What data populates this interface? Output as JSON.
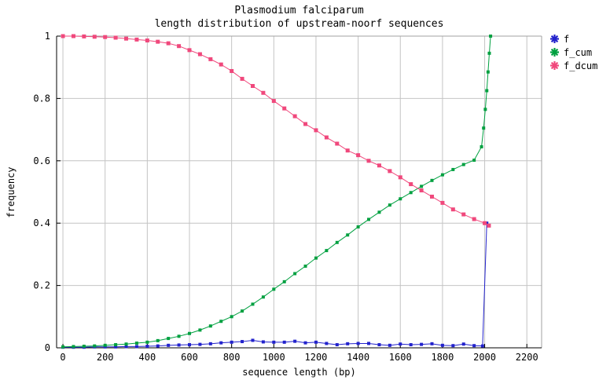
{
  "chart_data": {
    "type": "line",
    "title": "Plasmodium falciparum",
    "subtitle": "length distribution of upstream-noorf sequences",
    "xlabel": "sequence length (bp)",
    "ylabel": "frequency",
    "xlim": [
      -30,
      2270
    ],
    "ylim": [
      0,
      1
    ],
    "xticks": [
      0,
      200,
      400,
      600,
      800,
      1000,
      1200,
      1400,
      1600,
      1800,
      2000,
      2200
    ],
    "yticks": [
      0,
      0.2,
      0.4,
      0.6,
      0.8,
      1
    ],
    "grid": true,
    "legend_position": "outside-top-right",
    "colors": {
      "grid": "#c4c4c4",
      "border_gray": "#a0a0a0",
      "axis_black": "#000000"
    },
    "series": [
      {
        "name": "f",
        "color": "#2222cc",
        "x": [
          0,
          50,
          100,
          150,
          200,
          250,
          300,
          350,
          400,
          450,
          500,
          550,
          600,
          650,
          700,
          750,
          800,
          850,
          900,
          950,
          1000,
          1050,
          1100,
          1150,
          1200,
          1250,
          1300,
          1350,
          1400,
          1450,
          1500,
          1550,
          1600,
          1650,
          1700,
          1750,
          1800,
          1850,
          1900,
          1950,
          1990,
          2010
        ],
        "y": [
          0.002,
          0.002,
          0.002,
          0.003,
          0.003,
          0.003,
          0.004,
          0.004,
          0.005,
          0.006,
          0.008,
          0.009,
          0.01,
          0.011,
          0.013,
          0.016,
          0.018,
          0.02,
          0.024,
          0.019,
          0.018,
          0.018,
          0.021,
          0.016,
          0.018,
          0.014,
          0.01,
          0.013,
          0.014,
          0.014,
          0.01,
          0.008,
          0.012,
          0.01,
          0.011,
          0.013,
          0.008,
          0.007,
          0.012,
          0.007,
          0.006,
          0.4
        ]
      },
      {
        "name": "f_cum",
        "color": "#00a040",
        "x": [
          0,
          50,
          100,
          150,
          200,
          250,
          300,
          350,
          400,
          450,
          500,
          550,
          600,
          650,
          700,
          750,
          800,
          850,
          900,
          950,
          1000,
          1050,
          1100,
          1150,
          1200,
          1250,
          1300,
          1350,
          1400,
          1450,
          1500,
          1550,
          1600,
          1650,
          1700,
          1750,
          1800,
          1850,
          1900,
          1950,
          1985,
          1995,
          2003,
          2010,
          2016,
          2022,
          2028
        ],
        "y": [
          0.003,
          0.004,
          0.005,
          0.006,
          0.008,
          0.01,
          0.012,
          0.015,
          0.018,
          0.023,
          0.03,
          0.037,
          0.046,
          0.057,
          0.07,
          0.085,
          0.1,
          0.118,
          0.14,
          0.163,
          0.188,
          0.212,
          0.238,
          0.262,
          0.288,
          0.312,
          0.338,
          0.362,
          0.388,
          0.412,
          0.435,
          0.458,
          0.478,
          0.498,
          0.518,
          0.537,
          0.555,
          0.572,
          0.588,
          0.602,
          0.645,
          0.705,
          0.765,
          0.825,
          0.885,
          0.945,
          1.0
        ]
      },
      {
        "name": "f_dcum",
        "color": "#f0487c",
        "x": [
          0,
          50,
          100,
          150,
          200,
          250,
          300,
          350,
          400,
          450,
          500,
          550,
          600,
          650,
          700,
          750,
          800,
          850,
          900,
          950,
          1000,
          1050,
          1100,
          1150,
          1200,
          1250,
          1300,
          1350,
          1400,
          1450,
          1500,
          1550,
          1600,
          1650,
          1700,
          1750,
          1800,
          1850,
          1900,
          1950,
          2000,
          2020
        ],
        "y": [
          1.0,
          1.0,
          0.999,
          0.998,
          0.997,
          0.995,
          0.992,
          0.989,
          0.986,
          0.982,
          0.977,
          0.968,
          0.955,
          0.942,
          0.926,
          0.909,
          0.888,
          0.863,
          0.84,
          0.818,
          0.792,
          0.768,
          0.743,
          0.718,
          0.698,
          0.675,
          0.655,
          0.633,
          0.618,
          0.6,
          0.585,
          0.567,
          0.547,
          0.525,
          0.505,
          0.485,
          0.465,
          0.444,
          0.428,
          0.413,
          0.4,
          0.392
        ]
      }
    ]
  }
}
